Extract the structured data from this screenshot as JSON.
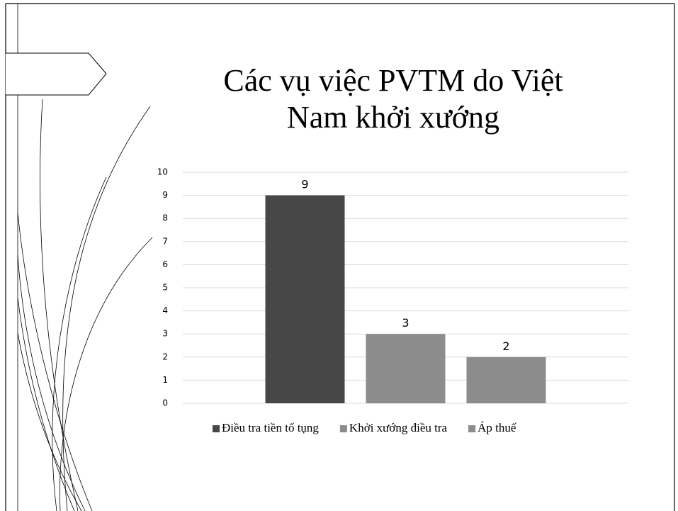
{
  "chart_data": {
    "type": "bar",
    "title": "Các vụ việc PVTM do Việt Nam khởi xướng",
    "categories": [
      null
    ],
    "series": [
      {
        "name": "Điều tra tiền tố tụng",
        "color": "#474747",
        "values": [
          9
        ]
      },
      {
        "name": "Khởi xướng điều tra",
        "color": "#8c8c8c",
        "values": [
          3
        ]
      },
      {
        "name": "Áp thuế",
        "color": "#8c8c8c",
        "values": [
          2
        ]
      }
    ],
    "ylim": [
      0,
      10
    ],
    "yticks": [
      0,
      1,
      2,
      3,
      4,
      5,
      6,
      7,
      8,
      9,
      10
    ],
    "grid": true,
    "legend": "bottom"
  }
}
